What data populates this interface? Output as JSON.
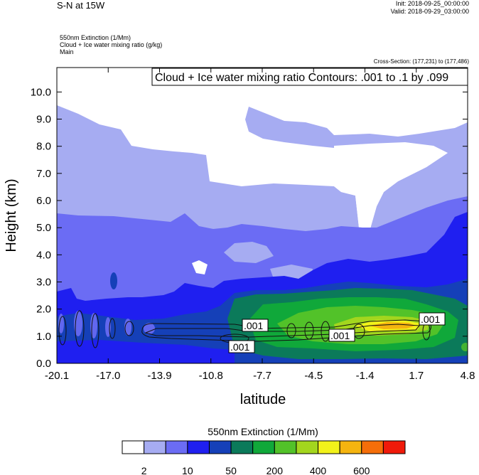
{
  "header": {
    "title": "S-N at 15W",
    "init": "Init: 2018-09-25_00:00:00",
    "valid": "Valid: 2018-09-29_03:00:00",
    "field1": "550nm Extinction   (1/Mm)",
    "field2": "Cloud + Ice water mixing ratio   (g/kg)",
    "field3": "Main",
    "cross_section": "Cross-Section: (177,231) to (177,486)",
    "contour_info": "Cloud + Ice water mixing ratio Contours: .001 to .1 by .099"
  },
  "chart_data": {
    "type": "heatmap",
    "xlabel": "latitude",
    "ylabel": "Height (km)",
    "x_ticks": [
      "-20.1",
      "-17.0",
      "-13.9",
      "-10.8",
      "-7.7",
      "-4.5",
      "-1.4",
      "1.7",
      "4.8"
    ],
    "y_ticks": [
      "0.0",
      "1.0",
      "2.0",
      "3.0",
      "4.0",
      "5.0",
      "6.0",
      "7.0",
      "8.0",
      "9.0",
      "10.0"
    ],
    "xlim": [
      -20.1,
      4.8
    ],
    "ylim": [
      0,
      10.9
    ],
    "colorbar": {
      "title": "550nm Extinction  (1/Mm)",
      "tick_labels": [
        "2",
        "10",
        "50",
        "200",
        "400",
        "600"
      ],
      "colors": [
        "#ffffff",
        "#a6acf2",
        "#6b6cf4",
        "#1f1ff0",
        "#1540b8",
        "#0b7a5a",
        "#10a83a",
        "#52c229",
        "#a3d61e",
        "#f2f21a",
        "#f5b40f",
        "#f56e0a",
        "#f01a0a"
      ]
    },
    "contour_labels": [
      ".001",
      ".001",
      ".001",
      ".001"
    ],
    "bands": [
      {
        "level": "white",
        "desc": "clear air above ~9 km and region 6-8 km near 0N"
      },
      {
        "level": "light-blue",
        "range_km": [
          5.4,
          9.5
        ]
      },
      {
        "level": "medium-blue",
        "range_km": [
          2.0,
          5.5
        ]
      },
      {
        "level": "blue",
        "range_km": [
          0.5,
          3.3
        ]
      },
      {
        "level": "green-yellow",
        "range_km": [
          0.8,
          2.4
        ],
        "lat_range": [
          -7.7,
          4.8
        ]
      }
    ]
  }
}
